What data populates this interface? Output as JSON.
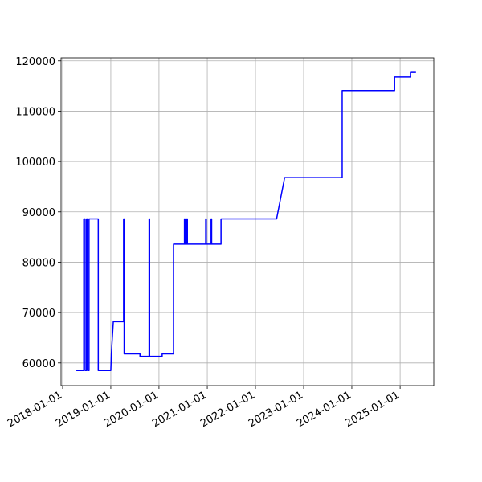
{
  "chart_data": {
    "type": "line",
    "x": [
      "2018-04-15",
      "2018-06-10",
      "2018-06-10",
      "2018-06-20",
      "2018-06-20",
      "2018-07-01",
      "2018-07-01",
      "2018-07-10",
      "2018-07-10",
      "2018-07-20",
      "2018-07-20",
      "2018-09-28",
      "2018-09-28",
      "2018-10-01",
      "2018-10-01",
      "2019-01-01",
      "2019-01-05",
      "2019-01-20",
      "2019-04-08",
      "2019-04-08",
      "2019-04-12",
      "2019-04-12",
      "2019-05-01",
      "2019-08-10",
      "2019-08-10",
      "2019-10-18",
      "2019-10-18",
      "2019-10-22",
      "2019-10-22",
      "2020-01-25",
      "2020-01-25",
      "2020-04-20",
      "2020-04-20",
      "2020-07-12",
      "2020-07-12",
      "2020-07-16",
      "2020-07-16",
      "2020-07-30",
      "2020-07-30",
      "2020-08-03",
      "2020-08-03",
      "2020-12-20",
      "2020-12-20",
      "2020-12-24",
      "2020-12-24",
      "2021-01-30",
      "2021-01-30",
      "2021-02-03",
      "2021-02-03",
      "2021-04-15",
      "2021-04-15",
      "2022-06-10",
      "2022-08-10",
      "2023-10-20",
      "2023-10-20",
      "2024-11-20",
      "2024-11-20",
      "2025-03-20",
      "2025-03-20",
      "2025-05-01"
    ],
    "values": [
      58500,
      58500,
      88600,
      88600,
      58500,
      58500,
      88600,
      88600,
      58500,
      58500,
      88600,
      88600,
      58500,
      58500,
      58500,
      58500,
      61700,
      68200,
      68200,
      88600,
      88600,
      61800,
      61800,
      61800,
      61300,
      61300,
      88600,
      88600,
      61300,
      61300,
      61800,
      61800,
      83600,
      83600,
      88600,
      88600,
      83600,
      83600,
      88600,
      88600,
      83600,
      83600,
      88600,
      88600,
      83600,
      83600,
      88600,
      88600,
      83600,
      83600,
      88600,
      88600,
      96800,
      96800,
      114100,
      114100,
      116800,
      116800,
      117700,
      117700
    ],
    "color": "#0000ff",
    "xlim": [
      "2017-12-20",
      "2025-09-13"
    ],
    "xticks": [
      "2018-01-01",
      "2019-01-01",
      "2020-01-01",
      "2021-01-01",
      "2022-01-01",
      "2023-01-01",
      "2024-01-01",
      "2025-01-01"
    ],
    "ylim": [
      55500,
      120600
    ],
    "yticks": [
      60000,
      70000,
      80000,
      90000,
      100000,
      110000,
      120000
    ],
    "grid": true
  }
}
